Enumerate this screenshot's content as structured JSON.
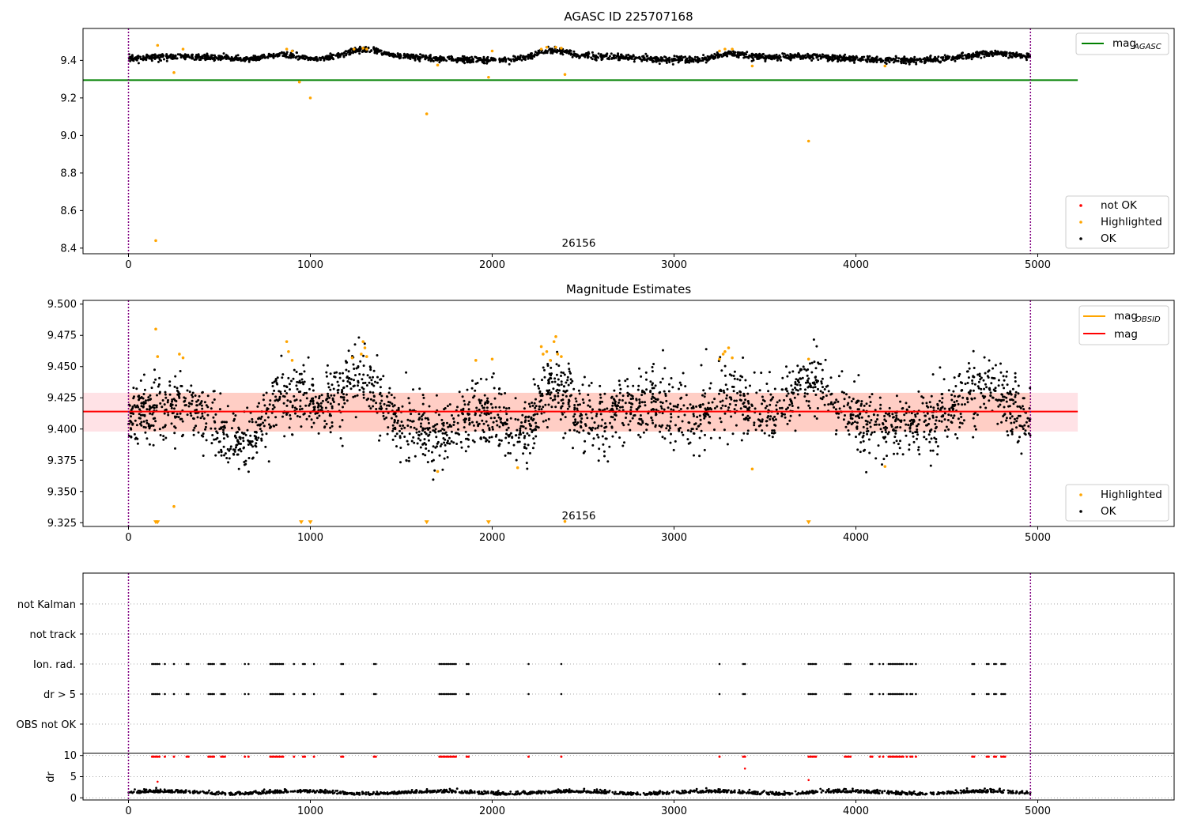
{
  "figure": {
    "vlines": {
      "x": [
        0,
        4960
      ],
      "color": "#800080"
    }
  },
  "chart_data": [
    {
      "type": "scatter",
      "title": "AGASC ID 225707168",
      "xlabel": "",
      "ylabel": "",
      "xlim": [
        -250,
        5750
      ],
      "ylim": [
        8.37,
        9.57
      ],
      "xticks": [
        0,
        1000,
        2000,
        3000,
        4000,
        5000
      ],
      "yticks": [
        8.4,
        8.6,
        8.8,
        9.0,
        9.2,
        9.4
      ],
      "annotation": {
        "text": "26156",
        "x": 2480,
        "y": 8.41
      },
      "lines": [
        {
          "name": "mag",
          "sub": "AGASC",
          "y": 9.295,
          "x": [
            -250,
            5220
          ],
          "color": "#008000"
        }
      ],
      "legend_lines": [
        {
          "name": "mag",
          "sub": "AGASC",
          "color": "#008000"
        }
      ],
      "legend_points": [
        {
          "name": "not OK",
          "color": "#ff0000"
        },
        {
          "name": "Highlighted",
          "color": "#ffa500"
        },
        {
          "name": "OK",
          "color": "#000000"
        }
      ],
      "ok_points": {
        "color": "#000000",
        "n": 2200,
        "baseline": 9.41,
        "noise": 0.008,
        "bumps": [
          [
            850,
            9.44
          ],
          [
            1290,
            9.45
          ],
          [
            2330,
            9.45
          ],
          [
            3300,
            9.44
          ],
          [
            4750,
            9.43
          ]
        ]
      },
      "highlighted_points": {
        "color": "#ffa500",
        "x": [
          150,
          160,
          250,
          300,
          870,
          900,
          940,
          1000,
          1240,
          1290,
          1310,
          1640,
          1700,
          1980,
          2000,
          2270,
          2300,
          2350,
          2380,
          2400,
          3250,
          3280,
          3320,
          3430,
          3740,
          4160
        ],
        "y": [
          8.44,
          9.48,
          9.335,
          9.46,
          9.46,
          9.45,
          9.285,
          9.2,
          9.46,
          9.465,
          9.46,
          9.115,
          9.375,
          9.31,
          9.45,
          9.46,
          9.47,
          9.47,
          9.465,
          9.325,
          9.45,
          9.46,
          9.46,
          9.37,
          8.97,
          9.37
        ]
      }
    },
    {
      "type": "scatter",
      "title": "Magnitude Estimates",
      "xlabel": "",
      "ylabel": "",
      "xlim": [
        -250,
        5750
      ],
      "ylim": [
        9.322,
        9.503
      ],
      "xticks": [
        0,
        1000,
        2000,
        3000,
        4000,
        5000
      ],
      "yticks": [
        9.325,
        9.35,
        9.375,
        9.4,
        9.425,
        9.45,
        9.475,
        9.5
      ],
      "annotation": {
        "text": "26156",
        "x": 2480,
        "y": 9.327
      },
      "band": {
        "y0": 9.398,
        "y1": 9.429,
        "x": [
          -250,
          5220
        ],
        "color": "#ffb6c1"
      },
      "band_inner": {
        "y0": 9.398,
        "y1": 9.429,
        "x": [
          0,
          4960
        ],
        "color": "#ffa07a"
      },
      "lines": [
        {
          "name": "mag",
          "y": 9.414,
          "x": [
            -250,
            5220
          ],
          "color": "#ff0000"
        }
      ],
      "legend_lines": [
        {
          "name": "mag",
          "sub": "OBSID",
          "color": "#ffa500"
        },
        {
          "name": "mag",
          "sub": "",
          "color": "#ff0000"
        }
      ],
      "legend_points": [
        {
          "name": "Highlighted",
          "color": "#ffa500"
        },
        {
          "name": "OK",
          "color": "#000000"
        }
      ],
      "ok_points": {
        "color": "#000000",
        "n": 2600,
        "baseline": 9.41,
        "noise": 0.013,
        "bumps": [
          [
            850,
            9.43
          ],
          [
            1290,
            9.44
          ],
          [
            2330,
            9.445
          ],
          [
            3300,
            9.435
          ],
          [
            3760,
            9.43
          ],
          [
            4750,
            9.43
          ],
          [
            2150,
            9.385
          ],
          [
            620,
            9.395
          ],
          [
            1750,
            9.395
          ]
        ]
      },
      "highlighted_points": {
        "color": "#ffa500",
        "x": [
          150,
          160,
          250,
          280,
          300,
          870,
          880,
          900,
          1230,
          1280,
          1290,
          1300,
          1310,
          1700,
          1910,
          2000,
          2140,
          2270,
          2280,
          2300,
          2320,
          2340,
          2350,
          2360,
          2380,
          2400,
          3250,
          3270,
          3280,
          3300,
          3320,
          3430,
          3740,
          4160
        ],
        "y": [
          9.48,
          9.458,
          9.338,
          9.46,
          9.457,
          9.47,
          9.462,
          9.455,
          9.457,
          9.46,
          9.47,
          9.465,
          9.458,
          9.366,
          9.455,
          9.456,
          9.369,
          9.466,
          9.46,
          9.462,
          9.455,
          9.47,
          9.474,
          9.46,
          9.458,
          9.326,
          9.456,
          9.46,
          9.462,
          9.465,
          9.457,
          9.368,
          9.456,
          9.37
        ]
      },
      "clipped_markers": {
        "color": "#ffa500",
        "x": [
          150,
          160,
          950,
          1000,
          1640,
          1980,
          3740
        ],
        "y": 9.325
      }
    },
    {
      "type": "scatter",
      "title": "",
      "xlabel": "",
      "ylabel": "",
      "xlim": [
        -250,
        5750
      ],
      "yticklabels": [
        "not Kalman",
        "not track",
        "Ion. rad.",
        "dr > 5",
        "OBS not OK"
      ],
      "flag_x": [
        130,
        140,
        150,
        160,
        170,
        200,
        250,
        320,
        330,
        440,
        450,
        460,
        470,
        510,
        520,
        530,
        640,
        660,
        780,
        790,
        800,
        810,
        820,
        830,
        840,
        850,
        910,
        960,
        970,
        1020,
        1170,
        1180,
        1350,
        1360,
        1710,
        1720,
        1730,
        1740,
        1750,
        1760,
        1770,
        1780,
        1790,
        1800,
        1860,
        1870,
        2200,
        2380,
        3250,
        3380,
        3390,
        3740,
        3750,
        3760,
        3770,
        3780,
        3940,
        3950,
        3960,
        3970,
        4080,
        4090,
        4130,
        4150,
        4180,
        4190,
        4200,
        4210,
        4220,
        4230,
        4240,
        4250,
        4260,
        4280,
        4300,
        4310,
        4330,
        4640,
        4650,
        4720,
        4730,
        4760,
        4770,
        4800,
        4810,
        4820
      ]
    },
    {
      "type": "scatter",
      "title": "",
      "xlabel": "",
      "ylabel": "dr",
      "xlim": [
        -250,
        5750
      ],
      "ylim": [
        -0.5,
        10.5
      ],
      "xticks": [
        0,
        1000,
        2000,
        3000,
        4000,
        5000
      ],
      "yticks": [
        0,
        5,
        10
      ],
      "dr_ok": {
        "color": "#000000",
        "n": 1500,
        "baseline": 1.0,
        "noise": 0.35
      },
      "dr_bad": {
        "color": "#ff0000",
        "cap": 9.7,
        "extra_x": [
          160,
          3390,
          3740
        ],
        "extra_y": [
          3.8,
          6.9,
          4.2
        ]
      }
    }
  ]
}
